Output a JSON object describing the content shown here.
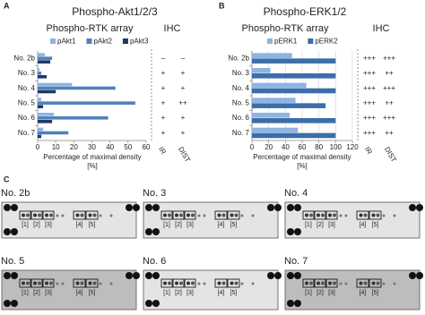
{
  "chart_data": [
    {
      "type": "bar",
      "orientation": "horizontal",
      "panel": "A",
      "title": "Phospho-Akt1/2/3",
      "subtitle": "Phospho-RTK array",
      "xlabel": "Percentage of maximal density [%]",
      "categories": [
        "No. 2b",
        "No. 3",
        "No. 4",
        "No. 5",
        "No. 6",
        "No. 7"
      ],
      "series": [
        {
          "name": "pAkt1",
          "color": "#8db4e2",
          "values": [
            4,
            1,
            19,
            2,
            9,
            3
          ]
        },
        {
          "name": "pAkt2",
          "color": "#4f81bd",
          "values": [
            8,
            2,
            43,
            54,
            39,
            17
          ]
        },
        {
          "name": "pAkt3",
          "color": "#1f3864",
          "values": [
            7,
            5,
            10,
            3,
            8,
            2
          ]
        }
      ],
      "xlim": [
        0,
        60
      ],
      "xticks": [
        0,
        10,
        20,
        30,
        40,
        50,
        60
      ],
      "grid": false,
      "legend": "top",
      "table": {
        "title": "IHC",
        "columns": [
          "IR",
          "DIST"
        ],
        "rows": [
          [
            "–",
            "–"
          ],
          [
            "+",
            "+"
          ],
          [
            "+",
            "+"
          ],
          [
            "+",
            "++"
          ],
          [
            "+",
            "+"
          ],
          [
            "+",
            "+"
          ]
        ]
      }
    },
    {
      "type": "bar",
      "orientation": "horizontal",
      "panel": "B",
      "title": "Phospho-ERK1/2",
      "subtitle": "Phospho-RTK array",
      "xlabel": "Percentage of maximal density [%]",
      "categories": [
        "No. 2b",
        "No. 3",
        "No. 4",
        "No. 5",
        "No. 6",
        "No. 7"
      ],
      "series": [
        {
          "name": "pERK1",
          "color": "#8db4e2",
          "values": [
            48,
            22,
            65,
            52,
            45,
            55
          ]
        },
        {
          "name": "pERK2",
          "color": "#3c6ea8",
          "values": [
            100,
            100,
            100,
            88,
            100,
            100
          ]
        }
      ],
      "xlim": [
        0,
        120
      ],
      "xticks": [
        0,
        20,
        40,
        60,
        80,
        100,
        120
      ],
      "grid": true,
      "legend": "top",
      "table": {
        "title": "IHC",
        "columns": [
          "IR",
          "DIST"
        ],
        "rows": [
          [
            "+++",
            "+++"
          ],
          [
            "+++",
            "++"
          ],
          [
            "+++",
            "+++"
          ],
          [
            "+++",
            "++"
          ],
          [
            "+++",
            "+++"
          ],
          [
            "+++",
            "++"
          ]
        ]
      }
    }
  ],
  "blots": {
    "panel": "C",
    "items": [
      {
        "label": "No. 2b",
        "markers": [
          "[1]",
          "[2]",
          "[3]",
          "[4]",
          "[5]"
        ]
      },
      {
        "label": "No. 3",
        "markers": [
          "[1]",
          "[2]",
          "[3]",
          "[4]",
          "[5]"
        ]
      },
      {
        "label": "No. 4",
        "markers": [
          "[1]",
          "[2]",
          "[3]",
          "[4]",
          "[5]"
        ]
      },
      {
        "label": "No. 5",
        "markers": [
          "[1]",
          "[2]",
          "[3]",
          "[4]",
          "[5]"
        ]
      },
      {
        "label": "No. 6",
        "markers": [
          "[1]",
          "[2]",
          "[3]",
          "[4]",
          "[5]"
        ]
      },
      {
        "label": "No. 7",
        "markers": [
          "[1]",
          "[2]",
          "[3]",
          "[4]",
          "[5]"
        ]
      }
    ]
  }
}
